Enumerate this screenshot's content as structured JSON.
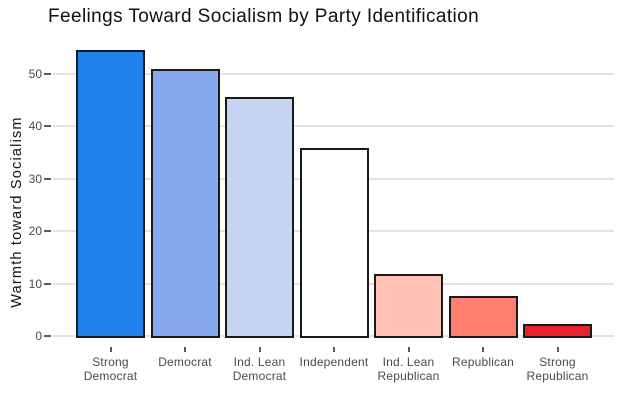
{
  "chart_data": {
    "type": "bar",
    "title": "Feelings Toward Socialism by Party Identification",
    "xlabel": "",
    "ylabel": "Warmth toward Socialism",
    "categories": [
      "Strong Democrat",
      "Democrat",
      "Ind. Lean Democrat",
      "Independent",
      "Ind. Lean Republican",
      "Republican",
      "Strong Republican"
    ],
    "category_label_lines": [
      [
        "Strong",
        "Democrat"
      ],
      [
        "Democrat"
      ],
      [
        "Ind. Lean",
        "Democrat"
      ],
      [
        "Independent"
      ],
      [
        "Ind. Lean",
        "Republican"
      ],
      [
        "Republican"
      ],
      [
        "Strong",
        "Republican"
      ]
    ],
    "values": [
      54.6,
      51.0,
      45.6,
      35.9,
      11.9,
      7.6,
      2.2
    ],
    "yticks": [
      0,
      10,
      20,
      30,
      40,
      50
    ],
    "ylim": [
      0,
      55
    ],
    "grid": "horizontal-only",
    "legend": "none",
    "bar_colors": [
      "#1f82ea",
      "#88a9f0",
      "#c8d4f3",
      "#ffffff",
      "#ffc2b4",
      "#ff8070",
      "#e8222a"
    ],
    "bar_border_color": "#1a1a1a",
    "gridline_color": "#e3e3e3",
    "tick_label_color": "#4a4a4a",
    "title_color": "#111111",
    "background_color": "#ffffff"
  }
}
